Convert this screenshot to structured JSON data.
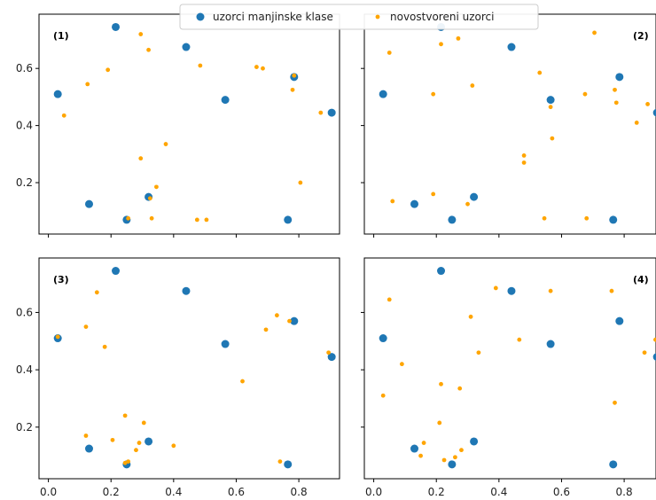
{
  "colors": {
    "minority": "#1f77b4",
    "synthetic": "#ffa500",
    "axis": "#000000",
    "legend_border": "#cccccc"
  },
  "legend": {
    "placement": "top-center",
    "items": [
      {
        "label": "uzorci manjinske klase",
        "series": "minority"
      },
      {
        "label": "novostvoreni uzorci",
        "series": "synthetic"
      }
    ]
  },
  "chart_data": [
    {
      "type": "scatter",
      "panel_label": "(1)",
      "label_position": "top-left",
      "xlim": [
        -0.03,
        0.93
      ],
      "ylim": [
        0.02,
        0.79
      ],
      "x_ticks": [
        0.0,
        0.2,
        0.4,
        0.6,
        0.8
      ],
      "x_tick_labels": [],
      "y_ticks": [
        0.2,
        0.4,
        0.6
      ],
      "y_tick_labels": [
        "0.2",
        "0.4",
        "0.6"
      ],
      "series": [
        {
          "key": "minority",
          "points": [
            [
              0.03,
              0.51
            ],
            [
              0.13,
              0.125
            ],
            [
              0.215,
              0.745
            ],
            [
              0.25,
              0.07
            ],
            [
              0.32,
              0.15
            ],
            [
              0.44,
              0.675
            ],
            [
              0.565,
              0.49
            ],
            [
              0.765,
              0.07
            ],
            [
              0.785,
              0.57
            ],
            [
              0.905,
              0.445
            ]
          ]
        },
        {
          "key": "synthetic",
          "points": [
            [
              0.05,
              0.435
            ],
            [
              0.125,
              0.545
            ],
            [
              0.19,
              0.595
            ],
            [
              0.255,
              0.075
            ],
            [
              0.295,
              0.72
            ],
            [
              0.295,
              0.285
            ],
            [
              0.32,
              0.665
            ],
            [
              0.325,
              0.145
            ],
            [
              0.33,
              0.075
            ],
            [
              0.345,
              0.185
            ],
            [
              0.375,
              0.335
            ],
            [
              0.475,
              0.07
            ],
            [
              0.485,
              0.61
            ],
            [
              0.505,
              0.07
            ],
            [
              0.665,
              0.605
            ],
            [
              0.685,
              0.6
            ],
            [
              0.78,
              0.525
            ],
            [
              0.785,
              0.575
            ],
            [
              0.805,
              0.2
            ],
            [
              0.87,
              0.445
            ]
          ]
        }
      ]
    },
    {
      "type": "scatter",
      "panel_label": "(2)",
      "label_position": "top-right",
      "xlim": [
        -0.03,
        0.93
      ],
      "ylim": [
        0.02,
        0.79
      ],
      "x_ticks": [
        0.0,
        0.2,
        0.4,
        0.6,
        0.8
      ],
      "x_tick_labels": [],
      "y_ticks": [
        0.2,
        0.4,
        0.6
      ],
      "y_tick_labels": [],
      "series": [
        {
          "key": "minority",
          "points": [
            [
              0.03,
              0.51
            ],
            [
              0.13,
              0.125
            ],
            [
              0.215,
              0.745
            ],
            [
              0.25,
              0.07
            ],
            [
              0.32,
              0.15
            ],
            [
              0.44,
              0.675
            ],
            [
              0.565,
              0.49
            ],
            [
              0.765,
              0.07
            ],
            [
              0.785,
              0.57
            ],
            [
              0.905,
              0.445
            ]
          ]
        },
        {
          "key": "synthetic",
          "points": [
            [
              0.05,
              0.655
            ],
            [
              0.06,
              0.135
            ],
            [
              0.19,
              0.51
            ],
            [
              0.19,
              0.16
            ],
            [
              0.215,
              0.685
            ],
            [
              0.27,
              0.705
            ],
            [
              0.3,
              0.125
            ],
            [
              0.315,
              0.54
            ],
            [
              0.48,
              0.295
            ],
            [
              0.48,
              0.27
            ],
            [
              0.53,
              0.585
            ],
            [
              0.545,
              0.075
            ],
            [
              0.565,
              0.465
            ],
            [
              0.57,
              0.355
            ],
            [
              0.675,
              0.51
            ],
            [
              0.68,
              0.075
            ],
            [
              0.705,
              0.725
            ],
            [
              0.77,
              0.525
            ],
            [
              0.775,
              0.48
            ],
            [
              0.84,
              0.41
            ],
            [
              0.875,
              0.475
            ]
          ]
        }
      ]
    },
    {
      "type": "scatter",
      "panel_label": "(3)",
      "label_position": "top-left",
      "xlim": [
        -0.03,
        0.93
      ],
      "ylim": [
        0.02,
        0.79
      ],
      "x_ticks": [
        0.0,
        0.2,
        0.4,
        0.6,
        0.8
      ],
      "x_tick_labels": [
        "0.0",
        "0.2",
        "0.4",
        "0.6",
        "0.8"
      ],
      "y_ticks": [
        0.2,
        0.4,
        0.6
      ],
      "y_tick_labels": [
        "0.2",
        "0.4",
        "0.6"
      ],
      "series": [
        {
          "key": "minority",
          "points": [
            [
              0.03,
              0.51
            ],
            [
              0.13,
              0.125
            ],
            [
              0.215,
              0.745
            ],
            [
              0.25,
              0.07
            ],
            [
              0.32,
              0.15
            ],
            [
              0.44,
              0.675
            ],
            [
              0.565,
              0.49
            ],
            [
              0.765,
              0.07
            ],
            [
              0.785,
              0.57
            ],
            [
              0.905,
              0.445
            ]
          ]
        },
        {
          "key": "synthetic",
          "points": [
            [
              0.03,
              0.515
            ],
            [
              0.12,
              0.55
            ],
            [
              0.12,
              0.17
            ],
            [
              0.155,
              0.67
            ],
            [
              0.18,
              0.48
            ],
            [
              0.205,
              0.155
            ],
            [
              0.245,
              0.24
            ],
            [
              0.245,
              0.075
            ],
            [
              0.255,
              0.08
            ],
            [
              0.28,
              0.12
            ],
            [
              0.29,
              0.145
            ],
            [
              0.305,
              0.215
            ],
            [
              0.4,
              0.135
            ],
            [
              0.62,
              0.36
            ],
            [
              0.695,
              0.54
            ],
            [
              0.73,
              0.59
            ],
            [
              0.74,
              0.08
            ],
            [
              0.77,
              0.57
            ],
            [
              0.895,
              0.46
            ]
          ]
        }
      ]
    },
    {
      "type": "scatter",
      "panel_label": "(4)",
      "label_position": "top-right",
      "xlim": [
        -0.03,
        0.93
      ],
      "ylim": [
        0.02,
        0.79
      ],
      "x_ticks": [
        0.0,
        0.2,
        0.4,
        0.6,
        0.8
      ],
      "x_tick_labels": [
        "0.0",
        "0.2",
        "0.4",
        "0.6",
        "0.8"
      ],
      "y_ticks": [
        0.2,
        0.4,
        0.6
      ],
      "y_tick_labels": [],
      "series": [
        {
          "key": "minority",
          "points": [
            [
              0.03,
              0.51
            ],
            [
              0.13,
              0.125
            ],
            [
              0.215,
              0.745
            ],
            [
              0.25,
              0.07
            ],
            [
              0.32,
              0.15
            ],
            [
              0.44,
              0.675
            ],
            [
              0.565,
              0.49
            ],
            [
              0.765,
              0.07
            ],
            [
              0.785,
              0.57
            ],
            [
              0.905,
              0.445
            ]
          ]
        },
        {
          "key": "synthetic",
          "points": [
            [
              0.03,
              0.31
            ],
            [
              0.05,
              0.645
            ],
            [
              0.09,
              0.42
            ],
            [
              0.15,
              0.1
            ],
            [
              0.16,
              0.145
            ],
            [
              0.21,
              0.215
            ],
            [
              0.215,
              0.35
            ],
            [
              0.225,
              0.085
            ],
            [
              0.26,
              0.095
            ],
            [
              0.275,
              0.335
            ],
            [
              0.28,
              0.12
            ],
            [
              0.31,
              0.585
            ],
            [
              0.335,
              0.46
            ],
            [
              0.39,
              0.685
            ],
            [
              0.465,
              0.505
            ],
            [
              0.565,
              0.675
            ],
            [
              0.76,
              0.675
            ],
            [
              0.77,
              0.285
            ],
            [
              0.865,
              0.46
            ],
            [
              0.9,
              0.505
            ]
          ]
        }
      ]
    }
  ]
}
